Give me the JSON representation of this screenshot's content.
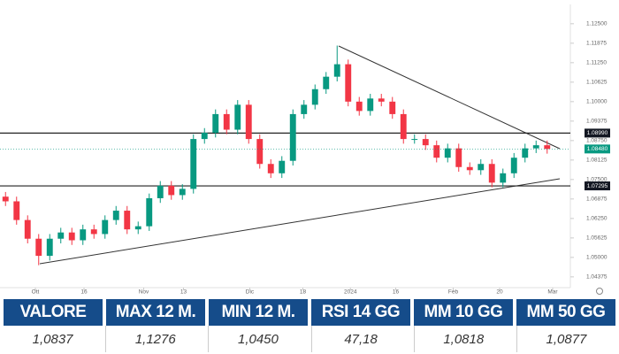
{
  "chart_data": {
    "type": "candlestick",
    "open": [
      1.0695,
      1.068,
      1.062,
      1.056,
      1.0505,
      1.056,
      1.058,
      1.0555,
      1.059,
      1.0575,
      1.062,
      1.065,
      1.059,
      1.06,
      1.069,
      1.073,
      1.07,
      1.072,
      1.088,
      1.09,
      1.096,
      1.091,
      1.099,
      1.088,
      1.08,
      1.077,
      1.081,
      1.096,
      1.099,
      1.104,
      1.108,
      1.112,
      1.1,
      1.097,
      1.101,
      1.1,
      1.096,
      1.088,
      1.088,
      1.086,
      1.082,
      1.085,
      1.079,
      1.078,
      1.08,
      1.074,
      1.077,
      1.082,
      1.085,
      1.086
    ],
    "high": [
      1.071,
      1.0695,
      1.0635,
      1.0575,
      1.0575,
      1.0595,
      1.0595,
      1.0605,
      1.0605,
      1.0635,
      1.0665,
      1.0665,
      1.0615,
      1.0705,
      1.0745,
      1.0745,
      1.0735,
      1.0895,
      1.0915,
      1.0975,
      1.0975,
      1.1005,
      1.1005,
      1.0895,
      1.0815,
      1.0825,
      1.0975,
      1.1005,
      1.1055,
      1.1095,
      1.118,
      1.1135,
      1.1015,
      1.1025,
      1.1025,
      1.1015,
      1.0975,
      1.0895,
      1.0895,
      1.0875,
      1.0865,
      1.0865,
      1.0805,
      1.0815,
      1.0815,
      1.0785,
      1.0835,
      1.0865,
      1.0875,
      1.0875
    ],
    "low": [
      1.0665,
      1.0605,
      1.0545,
      1.0475,
      1.049,
      1.0545,
      1.054,
      1.054,
      1.056,
      1.056,
      1.0605,
      1.0575,
      1.0575,
      1.0585,
      1.0675,
      1.0685,
      1.0685,
      1.0705,
      1.0865,
      1.0885,
      1.0895,
      1.0895,
      1.0865,
      1.0785,
      1.0755,
      1.0755,
      1.0795,
      1.0945,
      1.0975,
      1.1025,
      1.1065,
      1.0985,
      1.0955,
      1.0955,
      1.0985,
      1.0945,
      1.0865,
      1.0865,
      1.0845,
      1.0805,
      1.0805,
      1.0775,
      1.0765,
      1.0765,
      1.0725,
      1.0725,
      1.0755,
      1.0805,
      1.0835,
      1.0833
    ],
    "close": [
      1.068,
      1.062,
      1.056,
      1.0505,
      1.056,
      1.058,
      1.0555,
      1.059,
      1.0575,
      1.062,
      1.065,
      1.059,
      1.06,
      1.069,
      1.073,
      1.07,
      1.072,
      1.088,
      1.09,
      1.096,
      1.091,
      1.099,
      1.088,
      1.08,
      1.077,
      1.081,
      1.096,
      1.099,
      1.104,
      1.108,
      1.112,
      1.1,
      1.097,
      1.101,
      1.1,
      1.096,
      1.088,
      1.088,
      1.086,
      1.082,
      1.085,
      1.079,
      1.078,
      1.08,
      1.074,
      1.077,
      1.082,
      1.085,
      1.086,
      1.0848
    ],
    "up_color": "#089981",
    "down_color": "#f23645",
    "xlim": [
      -0.5,
      50.7
    ],
    "xticks": [
      {
        "value": 2.7,
        "label": "Ott"
      },
      {
        "value": 7.1,
        "label": "16"
      },
      {
        "value": 12.5,
        "label": "Nov"
      },
      {
        "value": 16.1,
        "label": "13"
      },
      {
        "value": 22.1,
        "label": "Dic"
      },
      {
        "value": 26.9,
        "label": "18"
      },
      {
        "value": 31.2,
        "label": "2024"
      },
      {
        "value": 35.3,
        "label": "16"
      },
      {
        "value": 40.5,
        "label": "Feb"
      },
      {
        "value": 44.7,
        "label": "20"
      },
      {
        "value": 49.5,
        "label": "Mar"
      }
    ],
    "ylim": [
      1.0403,
      1.1312
    ],
    "yticks": [
      {
        "value": 1.04375,
        "label": "1.04375"
      },
      {
        "value": 1.05,
        "label": "1.05000"
      },
      {
        "value": 1.05625,
        "label": "1.05625"
      },
      {
        "value": 1.0625,
        "label": "1.06250"
      },
      {
        "value": 1.06875,
        "label": "1.06875"
      },
      {
        "value": 1.075,
        "label": "1.07500"
      },
      {
        "value": 1.08125,
        "label": "1.08125"
      },
      {
        "value": 1.0875,
        "label": "1.08750"
      },
      {
        "value": 1.09375,
        "label": "1.09375"
      },
      {
        "value": 1.1,
        "label": "1.10000"
      },
      {
        "value": 1.10625,
        "label": "1.10625"
      },
      {
        "value": 1.1125,
        "label": "1.11250"
      },
      {
        "value": 1.11875,
        "label": "1.11875"
      },
      {
        "value": 1.125,
        "label": "1.12500"
      }
    ],
    "levels": [
      {
        "value": 1.0899,
        "label": "1.08990"
      },
      {
        "value": 1.07295,
        "label": "1.07295"
      }
    ],
    "last_price": {
      "value": 1.0848,
      "label": "1.08480"
    }
  },
  "table": {
    "headers": [
      "VALORE",
      "MAX 12 M.",
      "MIN 12 M.",
      "RSI 14 GG",
      "MM 10 GG",
      "MM 50 GG"
    ],
    "values": [
      "1,0837",
      "1,1276",
      "1,0450",
      "47,18",
      "1,0818",
      "1,0877"
    ]
  }
}
